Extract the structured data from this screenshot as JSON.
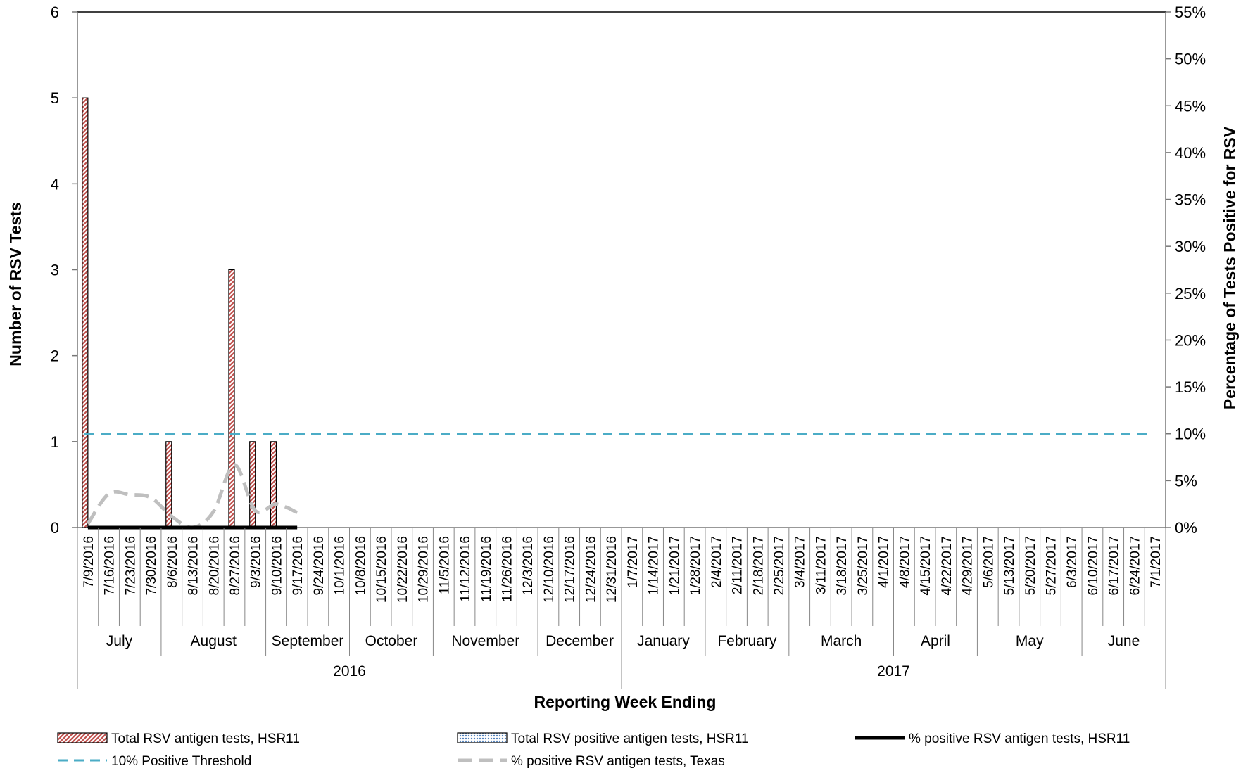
{
  "chart_data": {
    "type": "bar",
    "xlabel": "Reporting Week Ending",
    "ylabel": "Number of RSV Tests",
    "y2label": "Percentage of Tests Positive for RSV",
    "ylim": [
      0,
      6
    ],
    "y_ticks": [
      "0",
      "1",
      "2",
      "3",
      "4",
      "5",
      "6"
    ],
    "y2lim": [
      0,
      55
    ],
    "y2_ticks": [
      "0%",
      "5%",
      "10%",
      "15%",
      "20%",
      "25%",
      "30%",
      "35%",
      "40%",
      "45%",
      "50%",
      "55%"
    ],
    "categories": [
      "7/9/2016",
      "7/16/2016",
      "7/23/2016",
      "7/30/2016",
      "8/6/2016",
      "8/13/2016",
      "8/20/2016",
      "8/27/2016",
      "9/3/2016",
      "9/10/2016",
      "9/17/2016",
      "9/24/2016",
      "10/1/2016",
      "10/8/2016",
      "10/15/2016",
      "10/22/2016",
      "10/29/2016",
      "11/5/2016",
      "11/12/2016",
      "11/19/2016",
      "11/26/2016",
      "12/3/2016",
      "12/10/2016",
      "12/17/2016",
      "12/24/2016",
      "12/31/2016",
      "1/7/2017",
      "1/14/2017",
      "1/21/2017",
      "1/28/2017",
      "2/4/2017",
      "2/11/2017",
      "2/18/2017",
      "2/25/2017",
      "3/4/2017",
      "3/11/2017",
      "3/18/2017",
      "3/25/2017",
      "4/1/2017",
      "4/8/2017",
      "4/15/2017",
      "4/22/2017",
      "4/29/2017",
      "5/6/2017",
      "5/13/2017",
      "5/20/2017",
      "5/27/2017",
      "6/3/2017",
      "6/10/2017",
      "6/17/2017",
      "6/24/2017",
      "7/1/2017"
    ],
    "months": [
      {
        "label": "July",
        "weeks": 4
      },
      {
        "label": "August",
        "weeks": 5
      },
      {
        "label": "September",
        "weeks": 4
      },
      {
        "label": "October",
        "weeks": 4
      },
      {
        "label": "November",
        "weeks": 5
      },
      {
        "label": "December",
        "weeks": 4
      },
      {
        "label": "January",
        "weeks": 4
      },
      {
        "label": "February",
        "weeks": 4
      },
      {
        "label": "March",
        "weeks": 5
      },
      {
        "label": "April",
        "weeks": 4
      },
      {
        "label": "May",
        "weeks": 5
      },
      {
        "label": "June",
        "weeks": 4
      }
    ],
    "years": [
      {
        "label": "2016",
        "weeks": 26
      },
      {
        "label": "2017",
        "weeks": 26
      }
    ],
    "series": [
      {
        "name": "Total RSV antigen tests, HSR11",
        "kind": "bar",
        "axis": "left",
        "pattern": "red-hatch",
        "color": "#c0504d",
        "values": [
          5,
          0,
          0,
          0,
          1,
          0,
          0,
          3,
          1,
          1,
          0,
          null,
          null,
          null,
          null,
          null,
          null,
          null,
          null,
          null,
          null,
          null,
          null,
          null,
          null,
          null,
          null,
          null,
          null,
          null,
          null,
          null,
          null,
          null,
          null,
          null,
          null,
          null,
          null,
          null,
          null,
          null,
          null,
          null,
          null,
          null,
          null,
          null,
          null,
          null,
          null,
          null
        ]
      },
      {
        "name": "Total RSV positive antigen tests, HSR11",
        "kind": "bar",
        "axis": "left",
        "pattern": "blue-dots",
        "color": "#4f81bd",
        "values": [
          0,
          0,
          0,
          0,
          0,
          0,
          0,
          0,
          0,
          0,
          0,
          null,
          null,
          null,
          null,
          null,
          null,
          null,
          null,
          null,
          null,
          null,
          null,
          null,
          null,
          null,
          null,
          null,
          null,
          null,
          null,
          null,
          null,
          null,
          null,
          null,
          null,
          null,
          null,
          null,
          null,
          null,
          null,
          null,
          null,
          null,
          null,
          null,
          null,
          null,
          null,
          null
        ]
      },
      {
        "name": "% positive RSV antigen tests, HSR11",
        "kind": "line",
        "axis": "right",
        "color": "#000000",
        "dash": "solid",
        "values": [
          0,
          0,
          0,
          0,
          0,
          0,
          0,
          0,
          0,
          0,
          0,
          null,
          null,
          null,
          null,
          null,
          null,
          null,
          null,
          null,
          null,
          null,
          null,
          null,
          null,
          null,
          null,
          null,
          null,
          null,
          null,
          null,
          null,
          null,
          null,
          null,
          null,
          null,
          null,
          null,
          null,
          null,
          null,
          null,
          null,
          null,
          null,
          null,
          null,
          null,
          null,
          null
        ]
      },
      {
        "name": "10% Positive Threshold",
        "kind": "line",
        "axis": "right",
        "color": "#4bacc6",
        "dash": "dashed",
        "values": [
          10,
          10,
          10,
          10,
          10,
          10,
          10,
          10,
          10,
          10,
          10,
          10,
          10,
          10,
          10,
          10,
          10,
          10,
          10,
          10,
          10,
          10,
          10,
          10,
          10,
          10,
          10,
          10,
          10,
          10,
          10,
          10,
          10,
          10,
          10,
          10,
          10,
          10,
          10,
          10,
          10,
          10,
          10,
          10,
          10,
          10,
          10,
          10,
          10,
          10,
          10,
          10
        ]
      },
      {
        "name": "% positive RSV antigen tests, Texas",
        "kind": "line",
        "axis": "right",
        "color": "#bfbfbf",
        "dash": "dashed",
        "values": [
          0.4,
          3.6,
          3.5,
          3.2,
          1.2,
          0,
          1.7,
          6.7,
          1.8,
          2.5,
          1.6,
          null,
          null,
          null,
          null,
          null,
          null,
          null,
          null,
          null,
          null,
          null,
          null,
          null,
          null,
          null,
          null,
          null,
          null,
          null,
          null,
          null,
          null,
          null,
          null,
          null,
          null,
          null,
          null,
          null,
          null,
          null,
          null,
          null,
          null,
          null,
          null,
          null,
          null,
          null,
          null,
          null
        ]
      }
    ],
    "legend": {
      "position": "bottom"
    }
  }
}
